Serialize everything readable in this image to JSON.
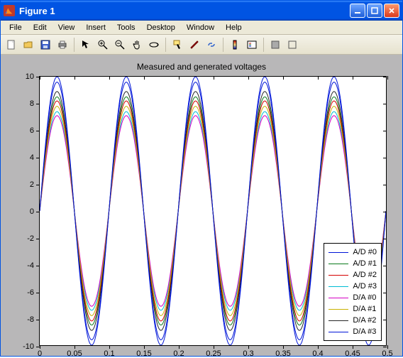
{
  "window": {
    "title": "Figure 1"
  },
  "menubar": {
    "items": [
      "File",
      "Edit",
      "View",
      "Insert",
      "Tools",
      "Desktop",
      "Window",
      "Help"
    ],
    "right_glyph": "‌"
  },
  "toolbar": {
    "icons": [
      "new",
      "open",
      "save",
      "print",
      "arrow",
      "zoom-in",
      "zoom-out",
      "pan",
      "rotate3d",
      "datacursor",
      "brush",
      "link",
      "colorbar",
      "legend",
      "grid1",
      "grid2"
    ]
  },
  "chart": {
    "type": "line",
    "title": "Measured and generated voltages",
    "title_fontsize": 12,
    "background_color": "#ffffff",
    "figure_bg_color": "#b8b7b8",
    "axis_color": "#000000",
    "xlim": [
      0,
      0.5
    ],
    "ylim": [
      -10,
      10
    ],
    "xticks": [
      0,
      0.05,
      0.1,
      0.15,
      0.2,
      0.25,
      0.3,
      0.35,
      0.4,
      0.45,
      0.5
    ],
    "xtick_labels": [
      "0",
      "0.05",
      "0.1",
      "0.15",
      "0.2",
      "0.25",
      "0.3",
      "0.35",
      "0.4",
      "0.45",
      "0.5"
    ],
    "yticks": [
      -10,
      -8,
      -6,
      -4,
      -2,
      0,
      2,
      4,
      6,
      8,
      10
    ],
    "ytick_labels": [
      "-10",
      "-8",
      "-6",
      "-4",
      "-2",
      "0",
      "2",
      "4",
      "6",
      "8",
      "10"
    ],
    "tick_fontsize": 11,
    "grid": false,
    "series": [
      {
        "label": "A/D #0",
        "color": "#0015d8",
        "amplitude": 10.0,
        "frequency": 10,
        "linewidth": 1
      },
      {
        "label": "A/D #1",
        "color": "#0a7a1c",
        "amplitude": 8.5,
        "frequency": 10,
        "linewidth": 1
      },
      {
        "label": "A/D #2",
        "color": "#d40000",
        "amplitude": 8.2,
        "frequency": 10,
        "linewidth": 1
      },
      {
        "label": "A/D #3",
        "color": "#00bcd4",
        "amplitude": 7.4,
        "frequency": 10,
        "linewidth": 1
      },
      {
        "label": "D/A #0",
        "color": "#d400c3",
        "amplitude": 7.1,
        "frequency": 10,
        "linewidth": 1
      },
      {
        "label": "D/A #1",
        "color": "#c9b100",
        "amplitude": 7.8,
        "frequency": 10,
        "linewidth": 1
      },
      {
        "label": "D/A #2",
        "color": "#262626",
        "amplitude": 8.9,
        "frequency": 10,
        "linewidth": 1
      },
      {
        "label": "D/A #3",
        "color": "#0015d8",
        "amplitude": 9.6,
        "frequency": 10,
        "linewidth": 1
      }
    ],
    "legend_position": "lower-right"
  }
}
